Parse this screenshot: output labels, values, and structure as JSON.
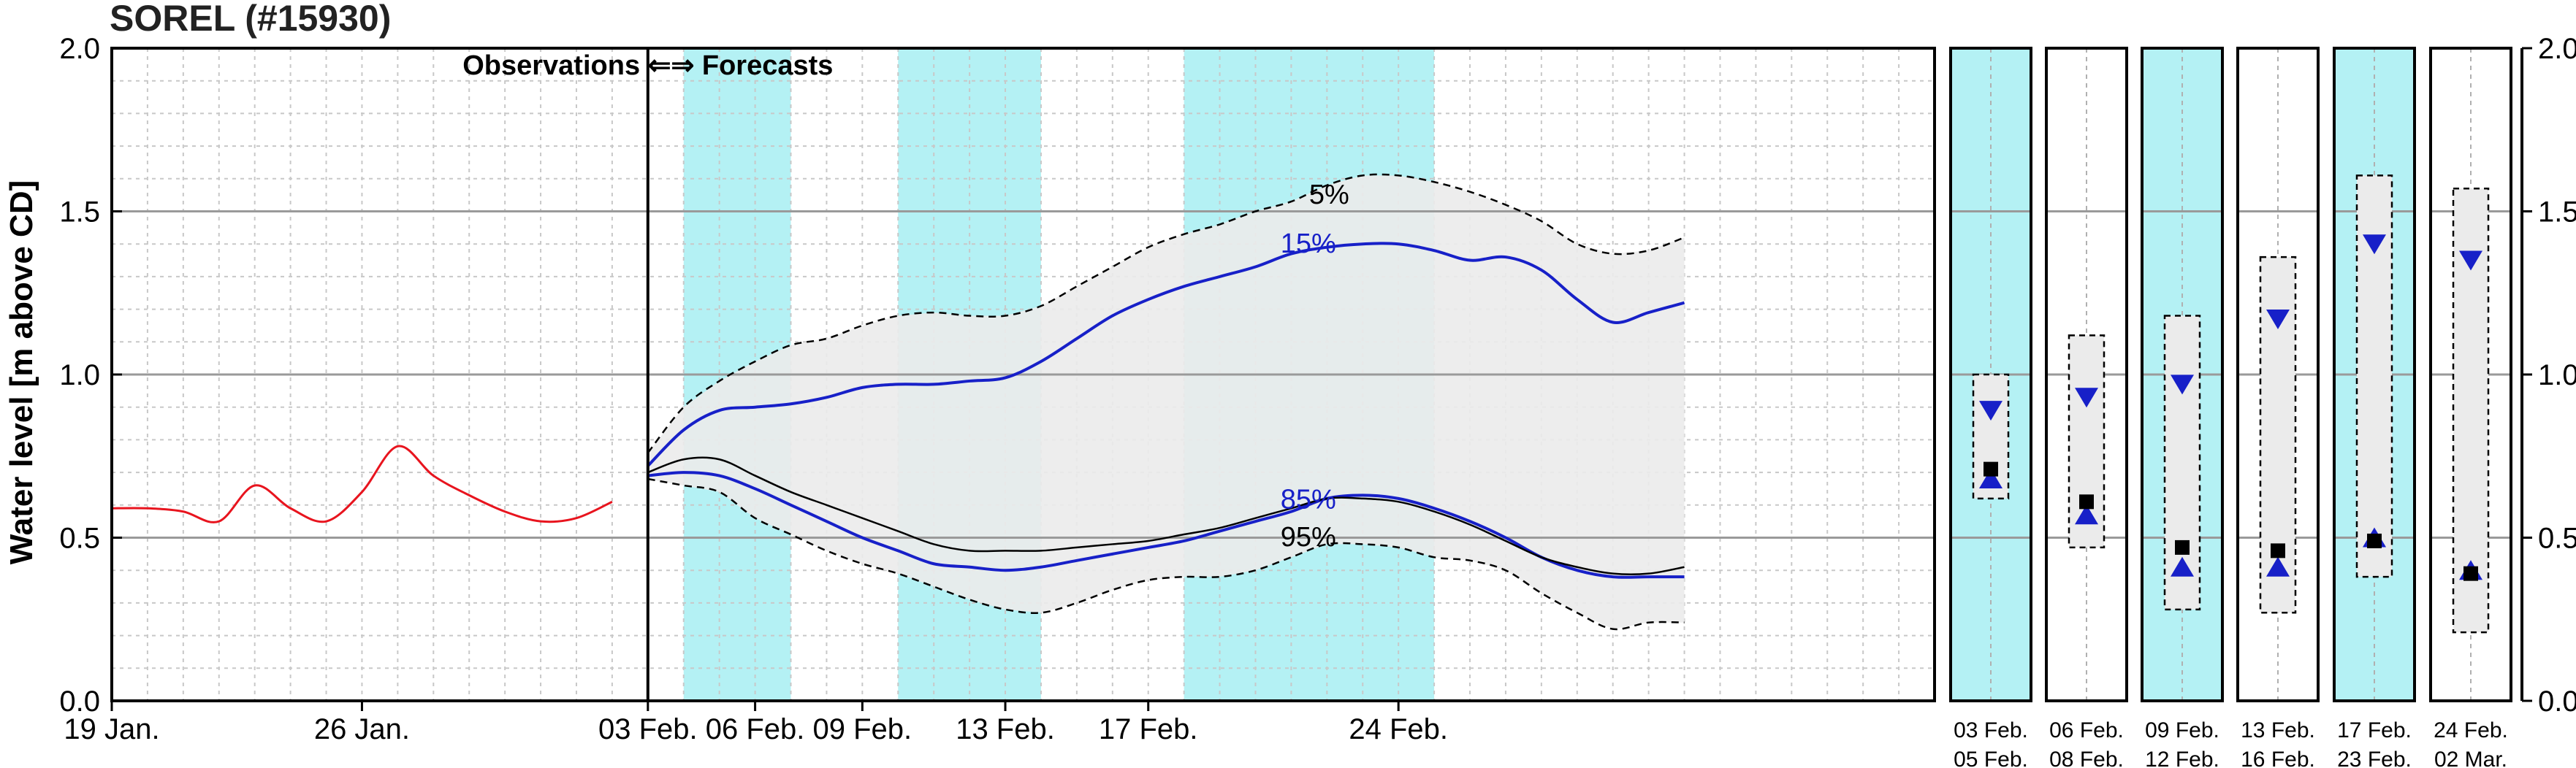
{
  "chart_data": {
    "type": "line",
    "title": "SOREL (#15930)",
    "ylabel": "Water level [m above CD]",
    "ylim": [
      0,
      2
    ],
    "yticks": [
      "0.0",
      "0.5",
      "1.0",
      "1.5",
      "2.0"
    ],
    "xlim_days": [
      0,
      51
    ],
    "xticks": [
      {
        "label": "19 Jan.",
        "day": 0
      },
      {
        "label": "26 Jan.",
        "day": 7
      },
      {
        "label": "03 Feb.",
        "day": 15
      },
      {
        "label": "06 Feb.",
        "day": 18
      },
      {
        "label": "09 Feb.",
        "day": 21
      },
      {
        "label": "13 Feb.",
        "day": 25
      },
      {
        "label": "17 Feb.",
        "day": 29
      },
      {
        "label": "24 Feb.",
        "day": 36
      }
    ],
    "grid": true,
    "divider_day": 15,
    "divider_label": "Observations ⇐⇒ Forecasts",
    "shaded_periods": [
      {
        "start": 16,
        "end": 19
      },
      {
        "start": 22,
        "end": 26
      },
      {
        "start": 30,
        "end": 37
      }
    ],
    "observations": {
      "color": "#e8141e",
      "x": [
        0,
        1,
        2,
        3,
        4,
        5,
        6,
        7,
        8,
        9,
        10,
        11,
        12,
        13,
        14
      ],
      "y": [
        0.59,
        0.59,
        0.58,
        0.55,
        0.66,
        0.59,
        0.55,
        0.64,
        0.78,
        0.69,
        0.63,
        0.58,
        0.55,
        0.56,
        0.61
      ]
    },
    "envelope_5": {
      "label": "5%",
      "x": [
        15,
        16,
        17,
        18,
        19,
        20,
        21,
        22,
        23,
        24,
        25,
        26,
        27,
        28,
        29,
        30,
        31,
        32,
        33,
        34,
        35,
        36,
        37,
        38,
        39,
        40,
        41,
        42,
        43,
        44
      ],
      "y": [
        0.76,
        0.9,
        0.98,
        1.04,
        1.09,
        1.11,
        1.15,
        1.18,
        1.19,
        1.18,
        1.18,
        1.21,
        1.27,
        1.33,
        1.39,
        1.43,
        1.46,
        1.5,
        1.53,
        1.58,
        1.61,
        1.61,
        1.59,
        1.56,
        1.52,
        1.47,
        1.4,
        1.37,
        1.38,
        1.42
      ]
    },
    "envelope_95": {
      "label": "95%",
      "x": [
        15,
        16,
        17,
        18,
        19,
        20,
        21,
        22,
        23,
        24,
        25,
        26,
        27,
        28,
        29,
        30,
        31,
        32,
        33,
        34,
        35,
        36,
        37,
        38,
        39,
        40,
        41,
        42,
        43,
        44
      ],
      "y": [
        0.68,
        0.66,
        0.64,
        0.56,
        0.51,
        0.46,
        0.42,
        0.39,
        0.35,
        0.31,
        0.28,
        0.27,
        0.3,
        0.34,
        0.37,
        0.38,
        0.38,
        0.4,
        0.44,
        0.48,
        0.48,
        0.47,
        0.44,
        0.43,
        0.4,
        0.33,
        0.27,
        0.22,
        0.24,
        0.24
      ]
    },
    "series": [
      {
        "name": "15%",
        "color": "#1720c8",
        "x": [
          15,
          16,
          17,
          18,
          19,
          20,
          21,
          22,
          23,
          24,
          25,
          26,
          27,
          28,
          29,
          30,
          31,
          32,
          33,
          34,
          35,
          36,
          37,
          38,
          39,
          40,
          41,
          42,
          43,
          44
        ],
        "y": [
          0.72,
          0.83,
          0.89,
          0.9,
          0.91,
          0.93,
          0.96,
          0.97,
          0.97,
          0.98,
          0.99,
          1.04,
          1.11,
          1.18,
          1.23,
          1.27,
          1.3,
          1.33,
          1.37,
          1.39,
          1.4,
          1.4,
          1.38,
          1.35,
          1.36,
          1.32,
          1.23,
          1.16,
          1.19,
          1.22
        ]
      },
      {
        "name": "85%",
        "color": "#1720c8",
        "x": [
          15,
          16,
          17,
          18,
          19,
          20,
          21,
          22,
          23,
          24,
          25,
          26,
          27,
          28,
          29,
          30,
          31,
          32,
          33,
          34,
          35,
          36,
          37,
          38,
          39,
          40,
          41,
          42,
          43,
          44
        ],
        "y": [
          0.69,
          0.7,
          0.69,
          0.65,
          0.6,
          0.55,
          0.5,
          0.46,
          0.42,
          0.41,
          0.4,
          0.41,
          0.43,
          0.45,
          0.47,
          0.49,
          0.52,
          0.55,
          0.58,
          0.62,
          0.63,
          0.62,
          0.59,
          0.55,
          0.5,
          0.44,
          0.4,
          0.38,
          0.38,
          0.38
        ]
      },
      {
        "name": "",
        "color": "#000000",
        "x": [
          15,
          16,
          17,
          18,
          19,
          20,
          21,
          22,
          23,
          24,
          25,
          26,
          27,
          28,
          29,
          30,
          31,
          32,
          33,
          34,
          35,
          36,
          37,
          38,
          39,
          40,
          41,
          42,
          43,
          44
        ],
        "y": [
          0.7,
          0.74,
          0.74,
          0.69,
          0.64,
          0.6,
          0.56,
          0.52,
          0.48,
          0.46,
          0.46,
          0.46,
          0.47,
          0.48,
          0.49,
          0.51,
          0.53,
          0.56,
          0.59,
          0.62,
          0.62,
          0.61,
          0.58,
          0.54,
          0.49,
          0.44,
          0.41,
          0.39,
          0.39,
          0.41
        ]
      }
    ],
    "label_5": "5%",
    "label_95": "95%",
    "weekly": [
      {
        "top": "03 Feb.",
        "bottom": "05 Feb.",
        "shaded": true,
        "box_low": 0.62,
        "box_high": 1.0,
        "down": 0.89,
        "square": 0.71,
        "up": 0.68
      },
      {
        "top": "06 Feb.",
        "bottom": "08 Feb.",
        "shaded": false,
        "box_low": 0.47,
        "box_high": 1.12,
        "down": 0.93,
        "square": 0.61,
        "up": 0.57
      },
      {
        "top": "09 Feb.",
        "bottom": "12 Feb.",
        "shaded": true,
        "box_low": 0.28,
        "box_high": 1.18,
        "down": 0.97,
        "square": 0.47,
        "up": 0.41
      },
      {
        "top": "13 Feb.",
        "bottom": "16 Feb.",
        "shaded": false,
        "box_low": 0.27,
        "box_high": 1.36,
        "down": 1.17,
        "square": 0.46,
        "up": 0.41
      },
      {
        "top": "17 Feb.",
        "bottom": "23 Feb.",
        "shaded": true,
        "box_low": 0.38,
        "box_high": 1.61,
        "down": 1.4,
        "square": 0.49,
        "up": 0.5
      },
      {
        "top": "24 Feb.",
        "bottom": "02 Mar.",
        "shaded": false,
        "box_low": 0.21,
        "box_high": 1.57,
        "down": 1.35,
        "square": 0.39,
        "up": 0.4
      }
    ],
    "right_yticks": [
      "0.0",
      "0.5",
      "1.0",
      "1.5",
      "2.0"
    ],
    "colors": {
      "shade": "#b4f1f4",
      "envelope_fill": "#ebebeb",
      "grid_major": "#9a9a9a",
      "grid_minor": "#c8c8c8"
    }
  }
}
